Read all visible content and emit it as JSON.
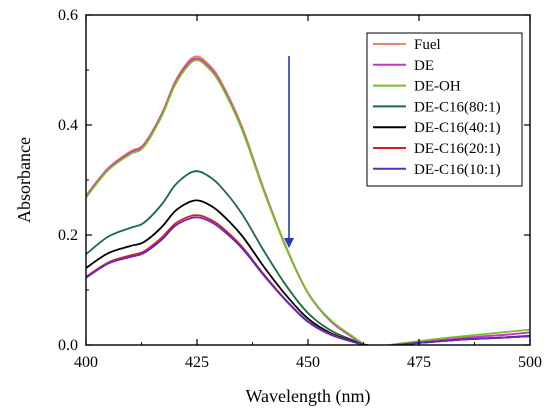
{
  "chart_data": {
    "type": "line",
    "xlabel": "Wavelength (nm)",
    "ylabel": "Absorbance",
    "xlim": [
      400,
      500
    ],
    "ylim": [
      0,
      0.6
    ],
    "xticks": [
      "400",
      "425",
      "450",
      "475",
      "500"
    ],
    "yticks": [
      "0.0",
      "0.2",
      "0.4",
      "0.6"
    ],
    "grid": false,
    "legend_position": "top-right",
    "annotation": "downward arrow indicating decreasing absorbance",
    "x": [
      400,
      405,
      410,
      413,
      417,
      420,
      423,
      425,
      427,
      430,
      435,
      440,
      445,
      450,
      455,
      460,
      463,
      466,
      470,
      475,
      480,
      485,
      490,
      495,
      500
    ],
    "series": [
      {
        "name": "Fuel",
        "color": "#e8846c",
        "values": [
          0.272,
          0.322,
          0.352,
          0.365,
          0.42,
          0.478,
          0.515,
          0.525,
          0.515,
          0.485,
          0.4,
          0.285,
          0.18,
          0.095,
          0.045,
          0.015,
          0.0,
          -0.003,
          0.0,
          0.005,
          0.009,
          0.013,
          0.016,
          0.019,
          0.023
        ]
      },
      {
        "name": "DE",
        "color": "#cc33cc",
        "values": [
          0.27,
          0.32,
          0.35,
          0.363,
          0.418,
          0.475,
          0.512,
          0.521,
          0.511,
          0.481,
          0.396,
          0.282,
          0.178,
          0.094,
          0.044,
          0.014,
          0.0,
          -0.003,
          0.0,
          0.005,
          0.009,
          0.013,
          0.016,
          0.019,
          0.023
        ]
      },
      {
        "name": "DE-OH",
        "color": "#77c022",
        "values": [
          0.268,
          0.318,
          0.347,
          0.36,
          0.415,
          0.472,
          0.508,
          0.518,
          0.508,
          0.478,
          0.394,
          0.281,
          0.178,
          0.095,
          0.046,
          0.016,
          0.0,
          -0.002,
          0.002,
          0.007,
          0.012,
          0.016,
          0.02,
          0.024,
          0.028
        ]
      },
      {
        "name": "DE-C16(80:1)",
        "color": "#1c6b3f",
        "values": [
          0.165,
          0.197,
          0.213,
          0.222,
          0.255,
          0.29,
          0.311,
          0.316,
          0.31,
          0.291,
          0.24,
          0.172,
          0.109,
          0.058,
          0.027,
          0.009,
          0.0,
          -0.002,
          0.0,
          0.004,
          0.007,
          0.01,
          0.012,
          0.014,
          0.017
        ]
      },
      {
        "name": "DE-C16(40:1)",
        "color": "#000000",
        "values": [
          0.14,
          0.167,
          0.18,
          0.187,
          0.214,
          0.243,
          0.259,
          0.263,
          0.258,
          0.242,
          0.2,
          0.143,
          0.091,
          0.048,
          0.022,
          0.007,
          0.0,
          -0.002,
          0.0,
          0.004,
          0.007,
          0.01,
          0.012,
          0.014,
          0.016
        ]
      },
      {
        "name": "DE-C16(20:1)",
        "color": "#d42020",
        "values": [
          0.124,
          0.15,
          0.163,
          0.17,
          0.195,
          0.22,
          0.233,
          0.236,
          0.232,
          0.218,
          0.18,
          0.129,
          0.082,
          0.043,
          0.02,
          0.006,
          0.0,
          -0.002,
          0.0,
          0.004,
          0.007,
          0.01,
          0.012,
          0.014,
          0.016
        ]
      },
      {
        "name": "DE-C16(10:1)",
        "color": "#5b2bc8",
        "values": [
          0.122,
          0.148,
          0.16,
          0.167,
          0.191,
          0.216,
          0.229,
          0.232,
          0.228,
          0.214,
          0.177,
          0.127,
          0.081,
          0.042,
          0.019,
          0.006,
          0.0,
          -0.002,
          0.0,
          0.004,
          0.007,
          0.01,
          0.012,
          0.014,
          0.016
        ]
      }
    ]
  },
  "colors": {
    "arrow": "#1f3fb5",
    "axis": "#000000"
  }
}
